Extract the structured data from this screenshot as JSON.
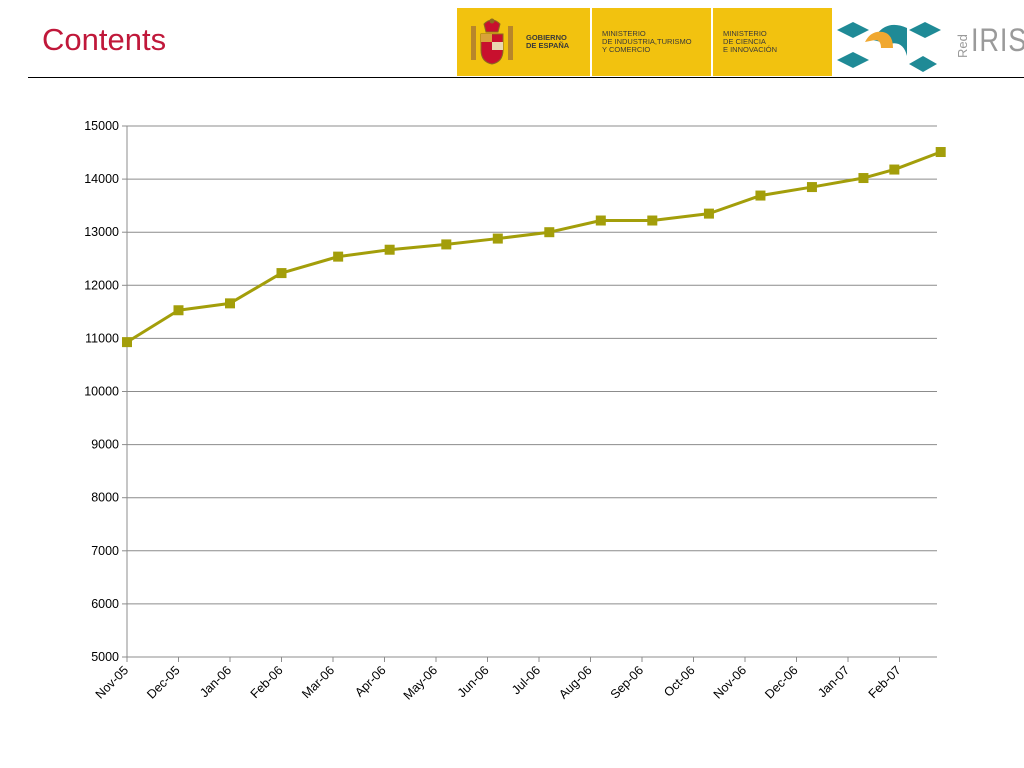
{
  "slide": {
    "title": "Contents"
  },
  "logos": {
    "gobierno": "GOBIERNO\nDE ESPAÑA",
    "ministerio_industria": "MINISTERIO\nDE INDUSTRIA,TURISMO\nY COMERCIO",
    "ministerio_ciencia": "MINISTERIO\nDE CIENCIA\nE INNOVACIÓN",
    "rediris_red": "Red",
    "rediris_iris": "IRIS"
  },
  "colors": {
    "title": "#c0183a",
    "series": "#a39e0a",
    "gov_yellow": "#f2c20f",
    "rediris_teal": "#1f8a96",
    "rediris_orange": "#f0a830",
    "grid": "#8c8c8c"
  },
  "chart_data": {
    "type": "line",
    "title": "",
    "xlabel": "",
    "ylabel": "",
    "ylim": [
      5000,
      15000
    ],
    "yticks": [
      5000,
      6000,
      7000,
      8000,
      9000,
      10000,
      11000,
      12000,
      13000,
      14000,
      15000
    ],
    "xticks": [
      "Nov-05",
      "Dec-05",
      "Jan-06",
      "Feb-06",
      "Mar-06",
      "Apr-06",
      "May-06",
      "Jun-06",
      "Jul-06",
      "Aug-06",
      "Sep-06",
      "Oct-06",
      "Nov-06",
      "Dec-06",
      "Jan-07",
      "Feb-07"
    ],
    "xtick_index": [
      0,
      1,
      2,
      3,
      4,
      5,
      6,
      7,
      8,
      9,
      10,
      11,
      12,
      13,
      14,
      15
    ],
    "grid": true,
    "legend": "none",
    "series": [
      {
        "x": [
          0,
          1,
          2,
          3,
          4.1,
          5.1,
          6.2,
          7.2,
          8.2,
          9.2,
          10.2,
          11.3,
          12.3,
          13.3,
          14.3,
          14.9,
          15.8
        ],
        "values": [
          10930,
          11530,
          11660,
          12230,
          12540,
          12670,
          12770,
          12880,
          13000,
          13220,
          13220,
          13350,
          13690,
          13850,
          14020,
          14180,
          14510
        ],
        "marker": "square"
      }
    ]
  }
}
